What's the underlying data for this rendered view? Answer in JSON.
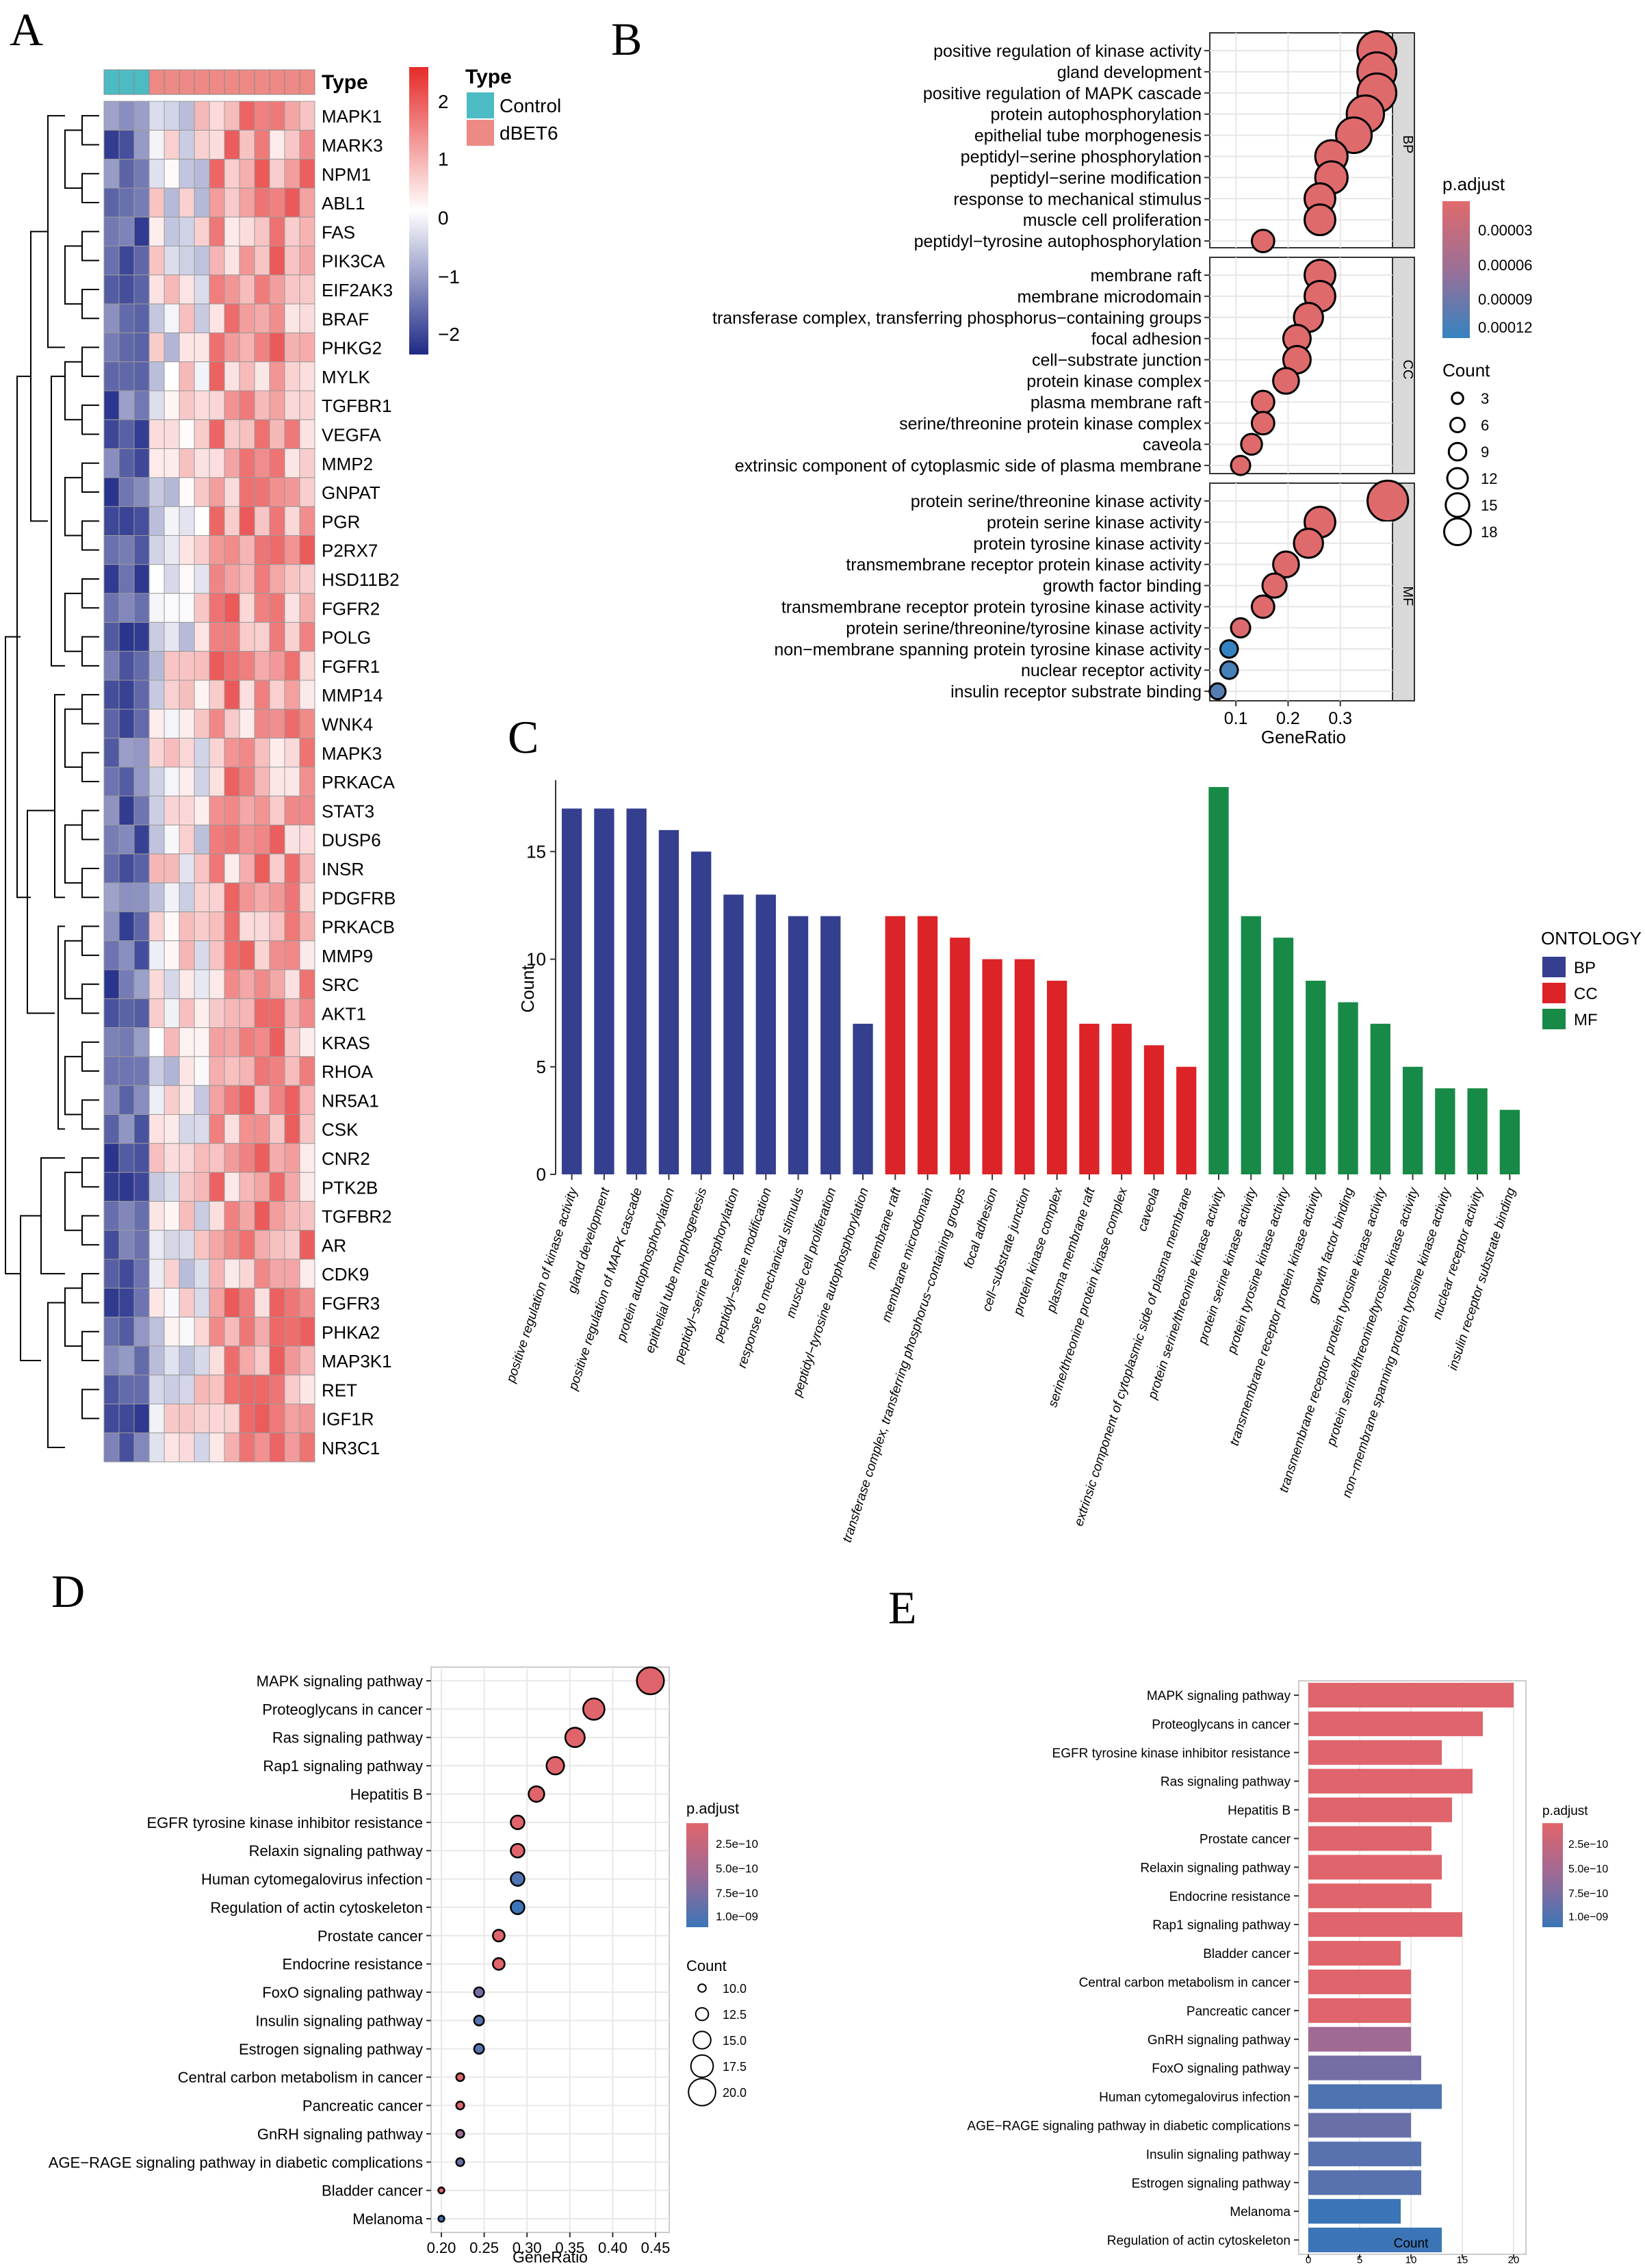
{
  "panels": {
    "a": "A",
    "b": "B",
    "c": "C",
    "d": "D",
    "e": "E"
  },
  "heatmap": {
    "type_title": "Type",
    "legend_title": "Type",
    "legend_items": [
      {
        "label": "Control",
        "color": "#4dbbc4"
      },
      {
        "label": "dBET6",
        "color": "#ee8a85"
      }
    ],
    "scale_ticks": [
      "2",
      "1",
      "0",
      "−1",
      "−2"
    ],
    "n_control": 3,
    "n_treated": 11,
    "genes": [
      "MAPK1",
      "MARK3",
      "NPM1",
      "ABL1",
      "FAS",
      "PIK3CA",
      "EIF2AK3",
      "BRAF",
      "PHKG2",
      "MYLK",
      "TGFBR1",
      "VEGFA",
      "MMP2",
      "GNPAT",
      "PGR",
      "P2RX7",
      "HSD11B2",
      "FGFR2",
      "POLG",
      "FGFR1",
      "MMP14",
      "WNK4",
      "MAPK3",
      "PRKACA",
      "STAT3",
      "DUSP6",
      "INSR",
      "PDGFRB",
      "PRKACB",
      "MMP9",
      "SRC",
      "AKT1",
      "KRAS",
      "RHOA",
      "NR5A1",
      "CSK",
      "CNR2",
      "PTK2B",
      "TGFBR2",
      "AR",
      "CDK9",
      "FGFR3",
      "PHKA2",
      "MAP3K1",
      "RET",
      "IGF1R",
      "NR3C1"
    ]
  },
  "chart_data": [
    {
      "panel": "B",
      "type": "scatter",
      "xlabel": "GeneRatio",
      "xticks": [
        "0.1",
        "0.2",
        "0.3"
      ],
      "xlim": [
        0.05,
        0.4
      ],
      "color_title": "p.adjust",
      "color_ticks": [
        "0.00003",
        "0.00006",
        "0.00009",
        "0.00012"
      ],
      "size_title": "Count",
      "size_ticks": [
        "3",
        "6",
        "9",
        "12",
        "15",
        "18"
      ],
      "groups": [
        {
          "name": "BP",
          "terms": [
            {
              "term": "positive regulation of kinase activity",
              "ratio": 0.37,
              "count": 17,
              "padj": 1e-06
            },
            {
              "term": "gland development",
              "ratio": 0.37,
              "count": 17,
              "padj": 1e-06
            },
            {
              "term": "positive regulation of MAPK cascade",
              "ratio": 0.37,
              "count": 17,
              "padj": 1e-06
            },
            {
              "term": "protein autophosphorylation",
              "ratio": 0.348,
              "count": 16,
              "padj": 1e-06
            },
            {
              "term": "epithelial tube morphogenesis",
              "ratio": 0.326,
              "count": 15,
              "padj": 1e-06
            },
            {
              "term": "peptidyl−serine phosphorylation",
              "ratio": 0.283,
              "count": 13,
              "padj": 1e-06
            },
            {
              "term": "peptidyl−serine modification",
              "ratio": 0.283,
              "count": 13,
              "padj": 1e-06
            },
            {
              "term": "response to mechanical stimulus",
              "ratio": 0.261,
              "count": 12,
              "padj": 1e-06
            },
            {
              "term": "muscle cell proliferation",
              "ratio": 0.261,
              "count": 12,
              "padj": 1e-06
            },
            {
              "term": "peptidyl−tyrosine autophosphorylation",
              "ratio": 0.152,
              "count": 7,
              "padj": 1e-06
            }
          ]
        },
        {
          "name": "CC",
          "terms": [
            {
              "term": "membrane raft",
              "ratio": 0.261,
              "count": 12,
              "padj": 1e-06
            },
            {
              "term": "membrane microdomain",
              "ratio": 0.261,
              "count": 12,
              "padj": 1e-06
            },
            {
              "term": "transferase complex, transferring phosphorus−containing groups",
              "ratio": 0.239,
              "count": 11,
              "padj": 1e-06
            },
            {
              "term": "focal adhesion",
              "ratio": 0.217,
              "count": 10,
              "padj": 1e-06
            },
            {
              "term": "cell−substrate junction",
              "ratio": 0.217,
              "count": 10,
              "padj": 1e-06
            },
            {
              "term": "protein kinase complex",
              "ratio": 0.196,
              "count": 9,
              "padj": 1e-06
            },
            {
              "term": "plasma membrane raft",
              "ratio": 0.152,
              "count": 7,
              "padj": 1e-06
            },
            {
              "term": "serine/threonine protein kinase complex",
              "ratio": 0.152,
              "count": 7,
              "padj": 1e-06
            },
            {
              "term": "caveola",
              "ratio": 0.13,
              "count": 6,
              "padj": 1e-06
            },
            {
              "term": "extrinsic component of cytoplasmic side of plasma membrane",
              "ratio": 0.109,
              "count": 5,
              "padj": 1e-06
            }
          ]
        },
        {
          "name": "MF",
          "terms": [
            {
              "term": "protein serine/threonine kinase activity",
              "ratio": 0.391,
              "count": 18,
              "padj": 1e-06
            },
            {
              "term": "protein serine kinase activity",
              "ratio": 0.261,
              "count": 12,
              "padj": 1e-06
            },
            {
              "term": "protein tyrosine kinase activity",
              "ratio": 0.239,
              "count": 11,
              "padj": 1e-06
            },
            {
              "term": "transmembrane receptor protein kinase activity",
              "ratio": 0.196,
              "count": 9,
              "padj": 1e-06
            },
            {
              "term": "growth factor binding",
              "ratio": 0.174,
              "count": 8,
              "padj": 1e-06
            },
            {
              "term": "transmembrane receptor protein tyrosine kinase activity",
              "ratio": 0.152,
              "count": 7,
              "padj": 1e-06
            },
            {
              "term": "protein serine/threonine/tyrosine kinase activity",
              "ratio": 0.109,
              "count": 5,
              "padj": 4e-06
            },
            {
              "term": "non−membrane spanning protein tyrosine kinase activity",
              "ratio": 0.087,
              "count": 4,
              "padj": 0.00012
            },
            {
              "term": "nuclear receptor activity",
              "ratio": 0.087,
              "count": 4,
              "padj": 0.00011
            },
            {
              "term": "insulin receptor substrate binding",
              "ratio": 0.065,
              "count": 3,
              "padj": 0.0001
            }
          ]
        }
      ]
    },
    {
      "panel": "C",
      "type": "bar",
      "ylabel": "Count",
      "ylim": [
        0,
        18
      ],
      "yticks": [
        "0",
        "5",
        "10",
        "15"
      ],
      "legend_title": "ONTOLOGY",
      "legend": [
        {
          "name": "BP",
          "color": "#343f8f"
        },
        {
          "name": "CC",
          "color": "#dc2327"
        },
        {
          "name": "MF",
          "color": "#188a47"
        }
      ],
      "categories": [
        "positive regulation of kinase activity",
        "gland development",
        "positive regulation of MAPK cascade",
        "protein autophosphorylation",
        "epithelial tube morphogenesis",
        "peptidyl−serine phosphorylation",
        "peptidyl−serine modification",
        "response to mechanical stimulus",
        "muscle cell proliferation",
        "peptidyl−tyrosine autophosphorylation",
        "membrane raft",
        "membrane microdomain",
        "transferase complex, transferring phosphorus−containing groups",
        "focal adhesion",
        "cell−substrate junction",
        "protein kinase complex",
        "plasma membrane raft",
        "serine/threonine protein kinase complex",
        "caveola",
        "extrinsic component of cytoplasmic side of plasma membrane",
        "protein serine/threonine kinase activity",
        "protein serine kinase activity",
        "protein tyrosine kinase activity",
        "transmembrane receptor protein kinase activity",
        "growth factor binding",
        "transmembrane receptor protein tyrosine kinase activity",
        "protein serine/threonine/tyrosine kinase activity",
        "non−membrane spanning protein tyrosine kinase activity",
        "nuclear receptor activity",
        "insulin receptor substrate binding"
      ],
      "values": [
        17,
        17,
        17,
        16,
        15,
        13,
        13,
        12,
        12,
        7,
        12,
        12,
        11,
        10,
        10,
        9,
        7,
        7,
        6,
        5,
        18,
        12,
        11,
        9,
        8,
        7,
        5,
        4,
        4,
        3
      ],
      "groups": [
        "BP",
        "BP",
        "BP",
        "BP",
        "BP",
        "BP",
        "BP",
        "BP",
        "BP",
        "BP",
        "CC",
        "CC",
        "CC",
        "CC",
        "CC",
        "CC",
        "CC",
        "CC",
        "CC",
        "CC",
        "MF",
        "MF",
        "MF",
        "MF",
        "MF",
        "MF",
        "MF",
        "MF",
        "MF",
        "MF"
      ]
    },
    {
      "panel": "D",
      "type": "scatter",
      "xlabel": "GeneRatio",
      "xlim": [
        0.2,
        0.45
      ],
      "xticks": [
        "0.20",
        "0.25",
        "0.30",
        "0.35",
        "0.40",
        "0.45"
      ],
      "color_title": "p.adjust",
      "color_ticks": [
        "2.5e−10",
        "5.0e−10",
        "7.5e−10",
        "1.0e−09"
      ],
      "size_title": "Count",
      "size_ticks": [
        "10.0",
        "12.5",
        "15.0",
        "17.5",
        "20.0"
      ],
      "terms": [
        {
          "term": "MAPK signaling pathway",
          "ratio": 0.444,
          "count": 20,
          "padj": 1e-11
        },
        {
          "term": "Proteoglycans in cancer",
          "ratio": 0.378,
          "count": 17,
          "padj": 1e-11
        },
        {
          "term": "Ras signaling pathway",
          "ratio": 0.356,
          "count": 16,
          "padj": 1e-11
        },
        {
          "term": "Rap1 signaling pathway",
          "ratio": 0.333,
          "count": 15,
          "padj": 1e-11
        },
        {
          "term": "Hepatitis B",
          "ratio": 0.311,
          "count": 14,
          "padj": 1e-11
        },
        {
          "term": "EGFR tyrosine kinase inhibitor resistance",
          "ratio": 0.289,
          "count": 13,
          "padj": 1e-11
        },
        {
          "term": "Relaxin signaling pathway",
          "ratio": 0.289,
          "count": 13,
          "padj": 1e-11
        },
        {
          "term": "Human cytomegalovirus infection",
          "ratio": 0.289,
          "count": 13,
          "padj": 9.5e-10
        },
        {
          "term": "Regulation of actin cytoskeleton",
          "ratio": 0.289,
          "count": 13,
          "padj": 1.05e-09
        },
        {
          "term": "Prostate cancer",
          "ratio": 0.267,
          "count": 12,
          "padj": 1e-11
        },
        {
          "term": "Endocrine resistance",
          "ratio": 0.267,
          "count": 12,
          "padj": 1e-11
        },
        {
          "term": "FoxO signaling pathway",
          "ratio": 0.244,
          "count": 11,
          "padj": 7.5e-10
        },
        {
          "term": "Insulin signaling pathway",
          "ratio": 0.244,
          "count": 11,
          "padj": 9e-10
        },
        {
          "term": "Estrogen signaling pathway",
          "ratio": 0.244,
          "count": 11,
          "padj": 9e-10
        },
        {
          "term": "Central carbon metabolism in cancer",
          "ratio": 0.222,
          "count": 10,
          "padj": 1e-11
        },
        {
          "term": "Pancreatic cancer",
          "ratio": 0.222,
          "count": 10,
          "padj": 1e-11
        },
        {
          "term": "GnRH signaling pathway",
          "ratio": 0.222,
          "count": 10,
          "padj": 5e-10
        },
        {
          "term": "AGE−RAGE signaling pathway in diabetic complications",
          "ratio": 0.222,
          "count": 10,
          "padj": 8e-10
        },
        {
          "term": "Bladder cancer",
          "ratio": 0.2,
          "count": 9,
          "padj": 1e-11
        },
        {
          "term": "Melanoma",
          "ratio": 0.2,
          "count": 9,
          "padj": 1.05e-09
        }
      ]
    },
    {
      "panel": "E",
      "type": "bar",
      "orientation": "horizontal",
      "xlabel": "Count",
      "xlim": [
        0,
        21
      ],
      "xticks": [
        "0",
        "5",
        "10",
        "15",
        "20"
      ],
      "color_title": "p.adjust",
      "color_ticks": [
        "2.5e−10",
        "5.0e−10",
        "7.5e−10",
        "1.0e−09"
      ],
      "categories": [
        "MAPK signaling pathway",
        "Proteoglycans in cancer",
        "EGFR tyrosine kinase inhibitor resistance",
        "Ras signaling pathway",
        "Hepatitis B",
        "Prostate cancer",
        "Relaxin signaling pathway",
        "Endocrine resistance",
        "Rap1 signaling pathway",
        "Bladder cancer",
        "Central carbon metabolism in cancer",
        "Pancreatic cancer",
        "GnRH signaling pathway",
        "FoxO signaling pathway",
        "Human cytomegalovirus infection",
        "AGE−RAGE signaling pathway in diabetic complications",
        "Insulin signaling pathway",
        "Estrogen signaling pathway",
        "Melanoma",
        "Regulation of actin cytoskeleton"
      ],
      "values": [
        20,
        17,
        13,
        16,
        14,
        12,
        13,
        12,
        15,
        9,
        10,
        10,
        10,
        11,
        13,
        10,
        11,
        11,
        9,
        13
      ],
      "padj": [
        1e-11,
        1e-11,
        1e-11,
        1e-11,
        1e-11,
        1e-11,
        1e-11,
        1e-11,
        1e-11,
        1e-11,
        1e-11,
        1e-11,
        5e-10,
        7.5e-10,
        9.5e-10,
        8e-10,
        9e-10,
        9e-10,
        1.05e-09,
        1.05e-09
      ]
    }
  ]
}
